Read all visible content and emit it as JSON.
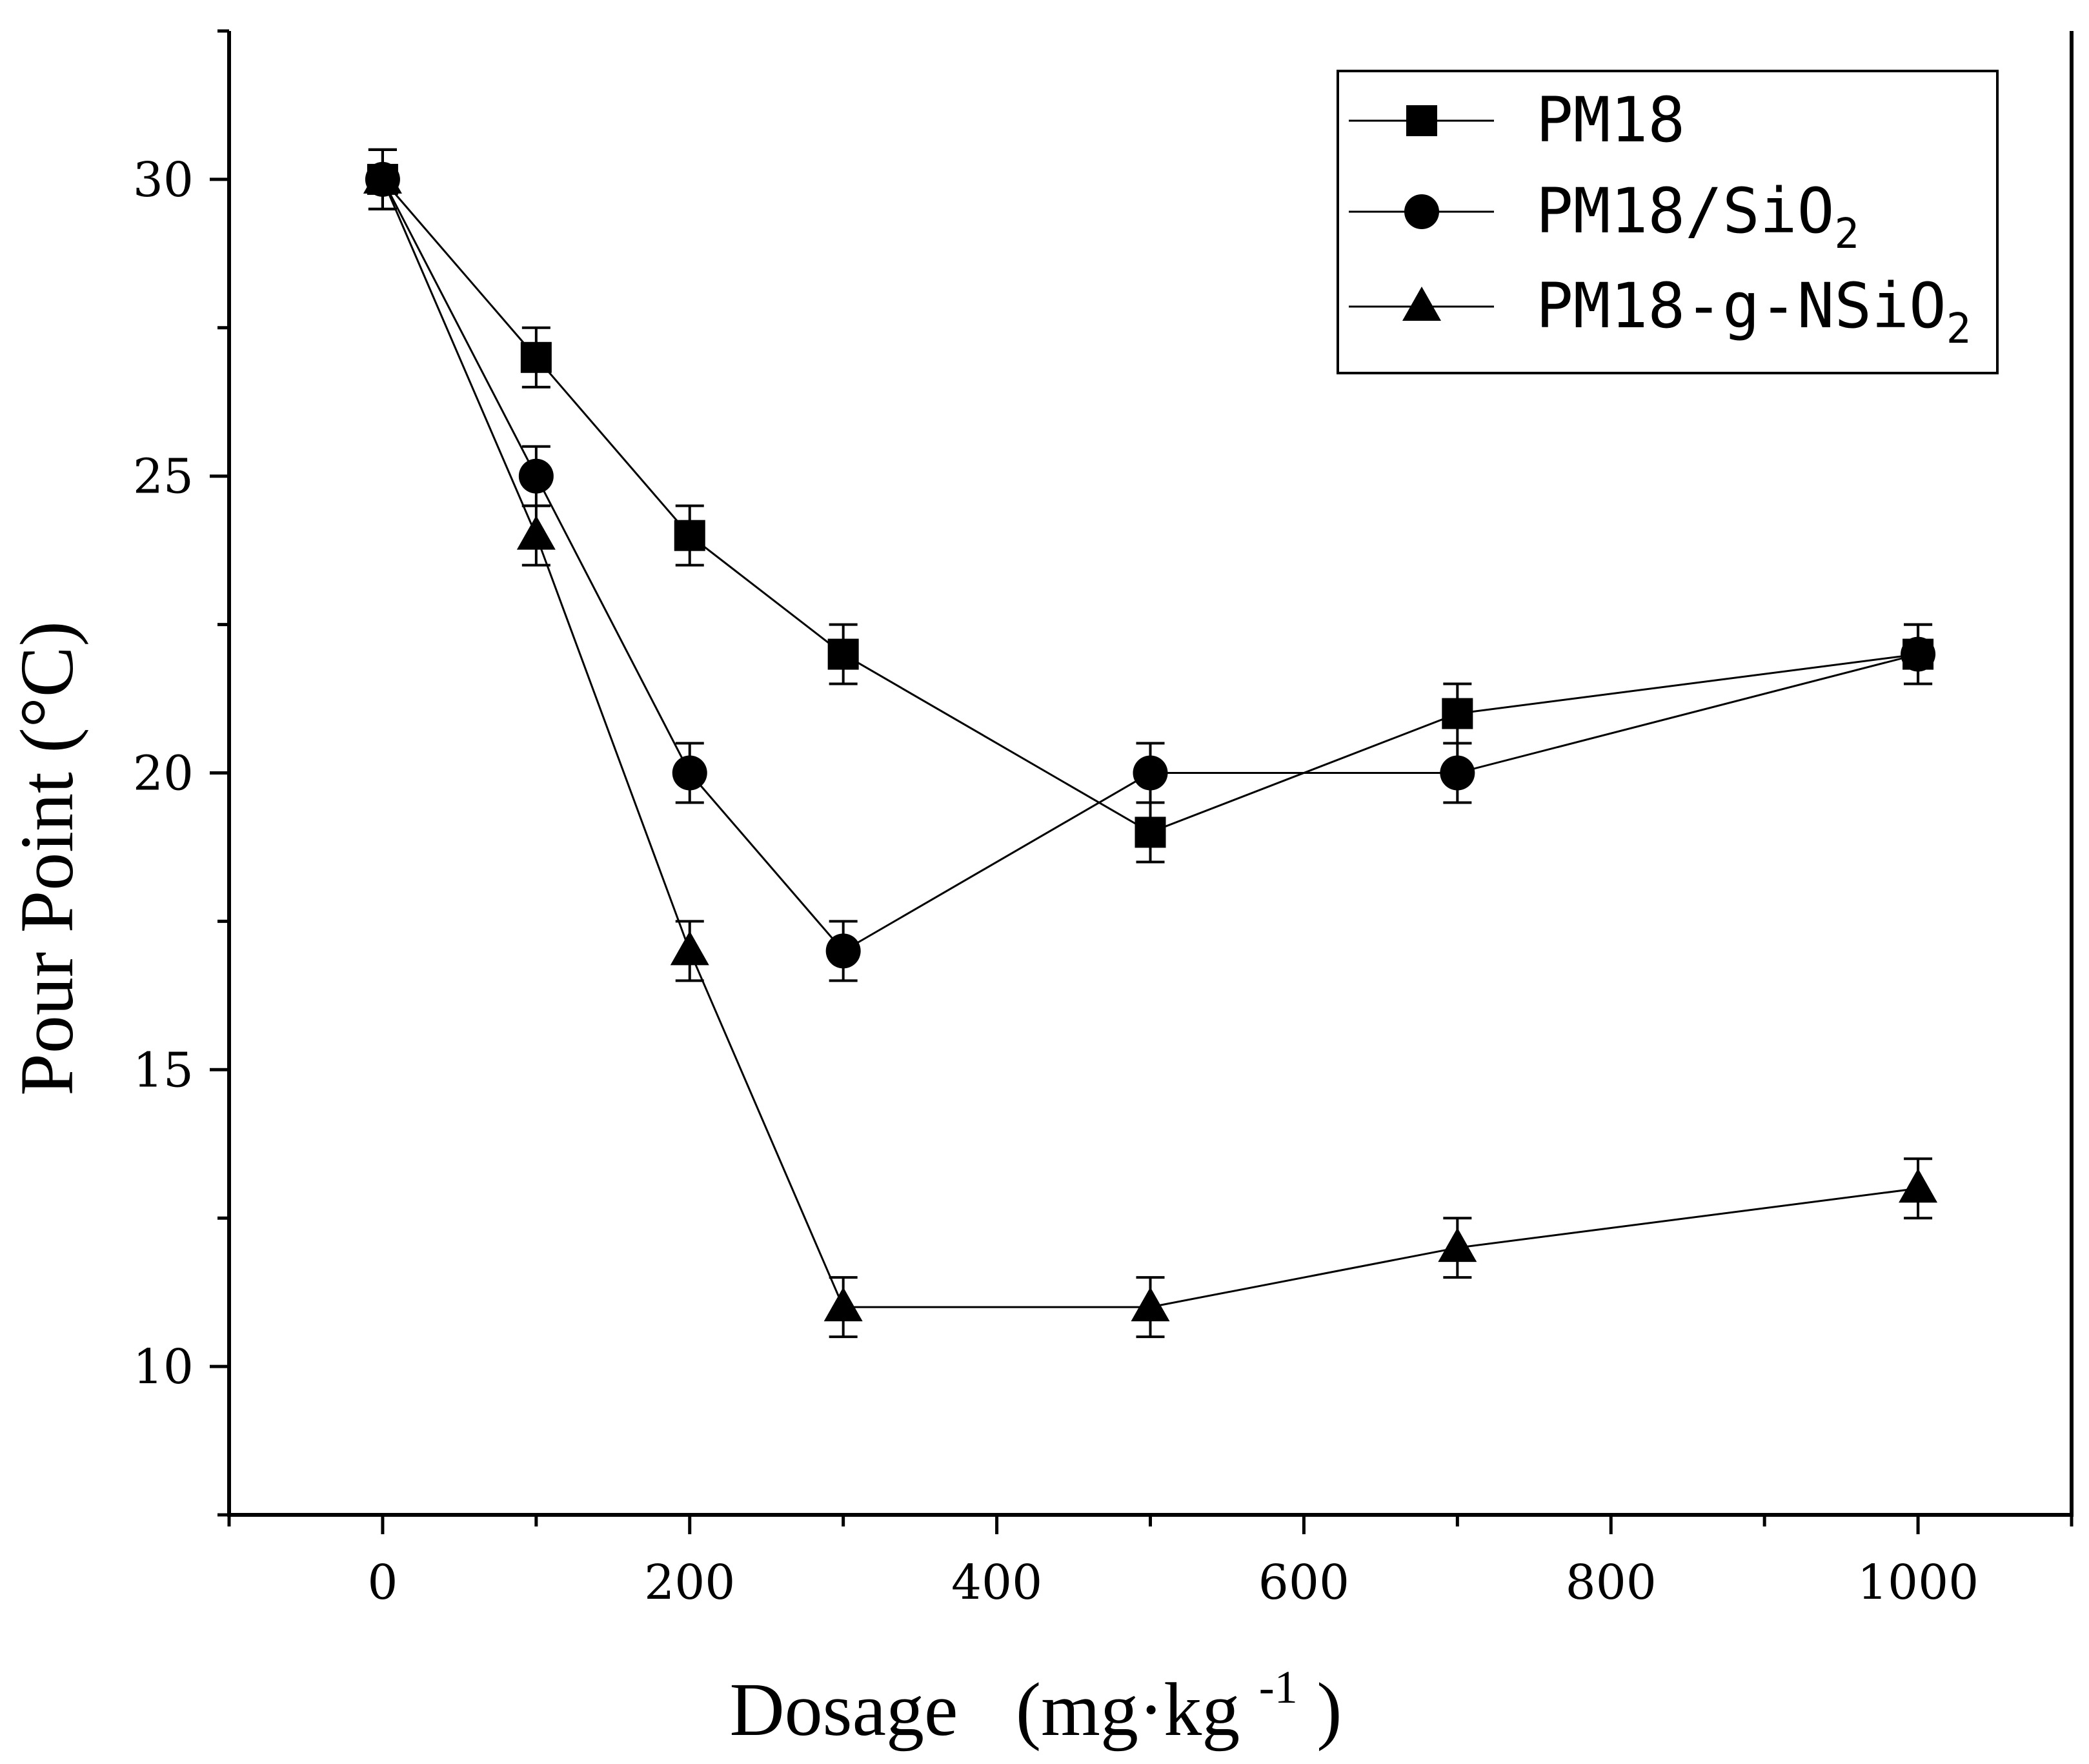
{
  "chart_data": {
    "type": "line",
    "title": "",
    "xlabel": "Dosage (mg·kg-1)",
    "xlabel_parts": {
      "main": "Dosage",
      "unit_open": "(mg·kg",
      "unit_sup": "-1",
      "unit_close": ")"
    },
    "ylabel": "Pour Point (°C)",
    "xlim": [
      -100,
      1100
    ],
    "ylim": [
      7.5,
      32.5
    ],
    "xticks": [
      0,
      200,
      400,
      600,
      800,
      1000
    ],
    "yticks": [
      10,
      15,
      20,
      25,
      30
    ],
    "x": [
      0,
      100,
      200,
      300,
      500,
      700,
      1000
    ],
    "grid": false,
    "legend_position": "top-right",
    "series": [
      {
        "name": "PM18",
        "label_main": "PM18",
        "label_sub": "",
        "marker": "square",
        "values": [
          30,
          27,
          24,
          22,
          19,
          21,
          22
        ],
        "error": [
          0.5,
          0.5,
          0.5,
          0.5,
          0.5,
          0.5,
          0.5
        ]
      },
      {
        "name": "PM18/SiO2",
        "label_main": "PM18/SiO",
        "label_sub": "2",
        "marker": "circle",
        "values": [
          30,
          25,
          20,
          17,
          20,
          20,
          22
        ],
        "error": [
          0.5,
          0.5,
          0.5,
          0.5,
          0.5,
          0.5,
          0.5
        ]
      },
      {
        "name": "PM18-g-NSiO2",
        "label_main": "PM18-g-NSiO",
        "label_sub": "2",
        "marker": "triangle",
        "values": [
          30,
          24,
          17,
          11,
          11,
          12,
          13
        ],
        "error": [
          0.5,
          0.5,
          0.5,
          0.5,
          0.5,
          0.5,
          0.5
        ]
      }
    ]
  }
}
